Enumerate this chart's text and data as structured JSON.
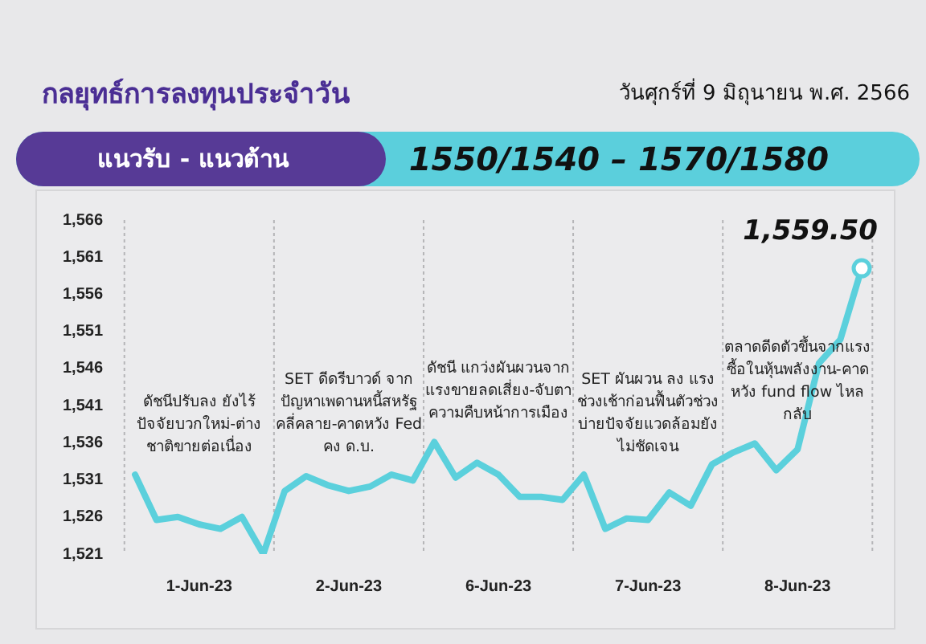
{
  "chart_data": {
    "type": "line",
    "title": "กลยุทธ์การลงทุนประจำวัน",
    "subtitle": "วันศุกร์ที่ 9 มิถุนายน พ.ศ. 2566",
    "annotations": [
      "แนวรับ - แนวต้าน",
      "1550/1540 – 1570/1580",
      "ดัชนีปรับลง ยังไร้ปัจจัยบวกใหม่-ต่างชาติขายต่อเนื่อง",
      "SET ดีดรีบาวด์ จากปัญหาเพดานหนี้สหรัฐคลี่คลาย-คาดหวัง Fed คง ด.บ.",
      "ดัชนี แกว่งผันผวนจากแรงขายลดเสี่ยง-จับตาความคืบหน้าการเมือง",
      "SET ผันผวน ลง แรงช่วงเช้าก่อนฟื้นตัวช่วงบ่ายปัจจัยแวดล้อมยังไม่ชัดเจน",
      "ตลาดดีดตัวขึ้นจากแรงซื้อในหุ้นพลังงาน-คาดหวัง fund flow ไหลกลับ"
    ],
    "categories": [
      null,
      null,
      null,
      "1-Jun-23",
      null,
      null,
      null,
      null,
      null,
      null,
      "2-Jun-23",
      null,
      null,
      null,
      null,
      null,
      null,
      "6-Jun-23",
      null,
      null,
      null,
      null,
      null,
      null,
      "7-Jun-23",
      null,
      null,
      null,
      null,
      null,
      null,
      "8-Jun-23",
      null,
      null,
      null
    ],
    "series": [
      {
        "color": "#5bd0dc",
        "values": [
          1531.7,
          1525.6,
          1526.0,
          1525.0,
          1524.4,
          1526.0,
          1521.0,
          1529.5,
          1531.5,
          1530.3,
          1529.5,
          1530.1,
          1531.7,
          1530.9,
          1536.1,
          1531.3,
          1533.3,
          1531.7,
          1528.7,
          1528.7,
          1528.3,
          1531.7,
          1524.4,
          1525.8,
          1525.6,
          1529.3,
          1527.5,
          1533.1,
          1534.7,
          1535.9,
          1532.3,
          1535.1,
          1546.7,
          1549.9,
          1559.5
        ],
        "value_labels": [
          null,
          null,
          null,
          null,
          null,
          null,
          null,
          null,
          null,
          null,
          null,
          null,
          null,
          null,
          null,
          null,
          null,
          null,
          null,
          null,
          null,
          null,
          null,
          null,
          null,
          null,
          null,
          null,
          null,
          null,
          null,
          null,
          null,
          null,
          "1,559.50"
        ]
      }
    ],
    "ylim": [
      1521,
      1566
    ],
    "yticks": [
      {
        "value": 1521,
        "label": "1,521"
      },
      {
        "value": 1526,
        "label": "1,526"
      },
      {
        "value": 1531,
        "label": "1,531"
      },
      {
        "value": 1536,
        "label": "1,536"
      },
      {
        "value": 1541,
        "label": "1,541"
      },
      {
        "value": 1546,
        "label": "1,546"
      },
      {
        "value": 1551,
        "label": "1,551"
      },
      {
        "value": 1556,
        "label": "1,556"
      },
      {
        "value": 1561,
        "label": "1,561"
      },
      {
        "value": 1566,
        "label": "1,566"
      }
    ],
    "grid": false,
    "legend": false,
    "marker": "none",
    "line_style": "solid"
  }
}
